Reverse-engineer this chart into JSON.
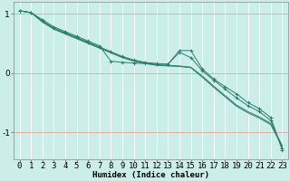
{
  "background_color": "#cceee8",
  "grid_color": "#ffffff",
  "line_color": "#2e7d6e",
  "xlabel": "Humidex (Indice chaleur)",
  "xlim": [
    -0.5,
    23.5
  ],
  "ylim": [
    -1.45,
    1.2
  ],
  "yticks": [
    -1,
    0,
    1
  ],
  "xticks": [
    0,
    1,
    2,
    3,
    4,
    5,
    6,
    7,
    8,
    9,
    10,
    11,
    12,
    13,
    14,
    15,
    16,
    17,
    18,
    19,
    20,
    21,
    22,
    23
  ],
  "lines": [
    {
      "x": [
        0,
        1,
        2,
        3,
        4,
        5,
        6,
        7,
        8,
        9,
        10,
        11,
        12,
        13,
        14,
        15,
        16,
        17,
        18,
        19,
        20,
        21,
        22,
        23
      ],
      "y": [
        1.05,
        1.02,
        0.9,
        0.78,
        0.7,
        0.62,
        0.54,
        0.46,
        0.2,
        0.18,
        0.17,
        0.16,
        0.15,
        0.15,
        0.38,
        0.38,
        0.07,
        -0.1,
        -0.23,
        -0.35,
        -0.5,
        -0.6,
        -0.75,
        -1.3
      ],
      "marker": true
    },
    {
      "x": [
        0,
        1,
        2,
        3,
        4,
        5,
        6,
        7,
        8,
        9,
        10,
        11,
        12,
        13,
        14,
        15,
        16,
        17,
        18,
        19,
        20,
        21,
        22,
        23
      ],
      "y": [
        1.05,
        1.02,
        0.88,
        0.76,
        0.68,
        0.6,
        0.52,
        0.44,
        0.36,
        0.28,
        0.22,
        0.18,
        0.16,
        0.15,
        0.35,
        0.26,
        0.04,
        -0.12,
        -0.27,
        -0.42,
        -0.55,
        -0.65,
        -0.8,
        -1.27
      ],
      "marker": true
    },
    {
      "x": [
        0,
        1,
        2,
        3,
        4,
        5,
        6,
        7,
        8,
        9,
        10,
        11,
        12,
        13,
        14,
        15,
        16,
        17,
        18,
        19,
        20,
        21,
        22,
        23
      ],
      "y": [
        1.05,
        1.02,
        0.87,
        0.75,
        0.67,
        0.59,
        0.51,
        0.43,
        0.35,
        0.27,
        0.21,
        0.17,
        0.14,
        0.13,
        0.12,
        0.1,
        -0.05,
        -0.22,
        -0.38,
        -0.54,
        -0.65,
        -0.74,
        -0.85,
        -1.22
      ],
      "marker": false
    },
    {
      "x": [
        0,
        1,
        2,
        3,
        4,
        5,
        6,
        7,
        8,
        9,
        10,
        11,
        12,
        13,
        14,
        15,
        16,
        17,
        18,
        19,
        20,
        21,
        22,
        23
      ],
      "y": [
        1.05,
        1.02,
        0.86,
        0.74,
        0.66,
        0.58,
        0.5,
        0.42,
        0.34,
        0.26,
        0.2,
        0.16,
        0.13,
        0.12,
        0.11,
        0.09,
        -0.07,
        -0.24,
        -0.4,
        -0.56,
        -0.67,
        -0.76,
        -0.87,
        -1.24
      ],
      "marker": false
    }
  ],
  "xlabel_fontsize": 6.5,
  "tick_fontsize": 6.5,
  "linewidth": 0.7,
  "markersize": 2.5
}
